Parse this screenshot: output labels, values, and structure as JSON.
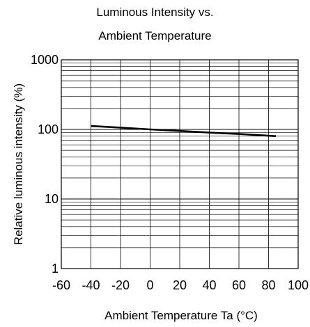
{
  "chart_data": {
    "type": "line",
    "title_line1": "Luminous Intensity vs.",
    "title_line2": "Ambient Temperature",
    "xlabel": "Ambient Temperature Ta (°C)",
    "ylabel": "Relative luminous intensity  (%)",
    "xlim": [
      -60,
      100
    ],
    "ylim": [
      1,
      1000
    ],
    "yscale": "log",
    "grid": true,
    "x_ticks": [
      "-60",
      "-40",
      "-20",
      "0",
      "20",
      "40",
      "60",
      "80",
      "100"
    ],
    "y_ticks": [
      "1",
      "10",
      "100",
      "1000"
    ],
    "series": [
      {
        "x": [
          -40,
          -20,
          0,
          20,
          40,
          60,
          85
        ],
        "y": [
          112,
          106,
          100,
          95,
          90,
          86,
          80
        ]
      }
    ]
  },
  "colors": {
    "line": "#000000",
    "grid": "#000000"
  }
}
